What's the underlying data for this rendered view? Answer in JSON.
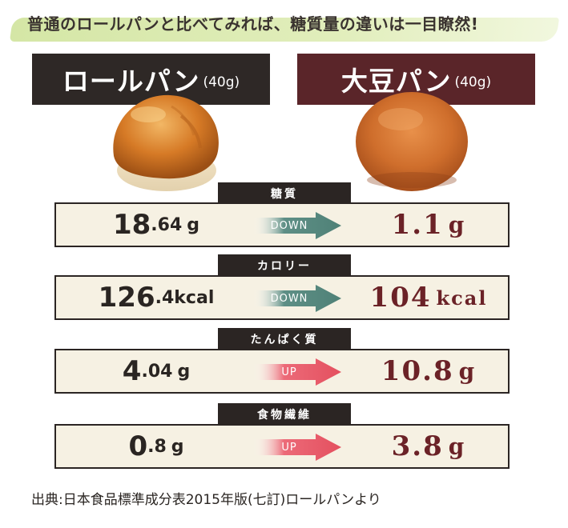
{
  "header": {
    "banner_text": "普通のロールパンと比べてみれば、糖質量の違いは一目瞭然!"
  },
  "columns": {
    "left": {
      "name": "ロールパン",
      "weight": "(40g)"
    },
    "right": {
      "name": "大豆パン",
      "weight": "(40g)"
    }
  },
  "rows": [
    {
      "category": "糖質",
      "left": {
        "int": "18",
        "dec": ".64",
        "unit": "g"
      },
      "arrow": "DOWN",
      "right": {
        "int": "1",
        "dec": ".1",
        "unit": "g"
      }
    },
    {
      "category": "カロリー",
      "left": {
        "int": "126",
        "dec": ".4",
        "unit": "kcal"
      },
      "arrow": "DOWN",
      "right": {
        "int": "104",
        "dec": "",
        "unit": "kcal"
      }
    },
    {
      "category": "たんぱく質",
      "left": {
        "int": "4",
        "dec": ".04",
        "unit": "g"
      },
      "arrow": "UP",
      "right": {
        "int": "10",
        "dec": ".8",
        "unit": "g"
      }
    },
    {
      "category": "食物繊維",
      "left": {
        "int": "0",
        "dec": ".8",
        "unit": "g"
      },
      "arrow": "UP",
      "right": {
        "int": "3",
        "dec": ".8",
        "unit": "g"
      }
    }
  ],
  "colors": {
    "down_arrow": "#5e8f86",
    "up_arrow": "#e8606f",
    "left_header": "#2e2826",
    "right_header": "#5a2529",
    "value_right": "#6b2227"
  },
  "footer": {
    "source": "出典:日本食品標準成分表2015年版(七訂)ロールパンより"
  }
}
